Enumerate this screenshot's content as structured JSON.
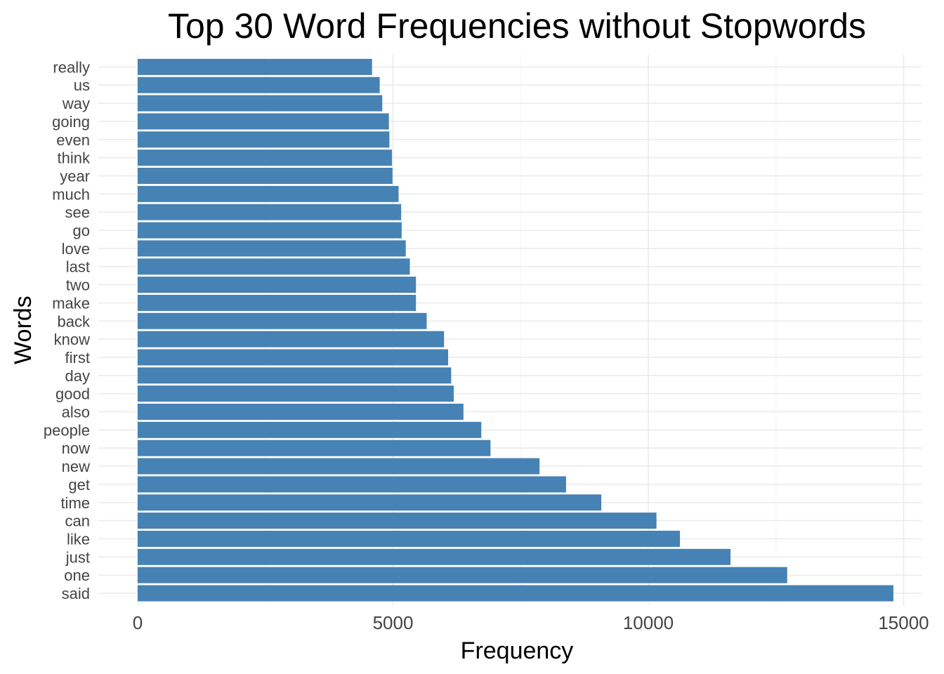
{
  "chart_data": {
    "type": "bar",
    "orientation": "horizontal",
    "title": "Top 30 Word Frequencies without Stopwords",
    "xlabel": "Frequency",
    "ylabel": "Words",
    "xlim": [
      0,
      15300
    ],
    "x_ticks": [
      0,
      5000,
      10000,
      15000
    ],
    "grid": true,
    "legend": "none",
    "bar_color": "#4682B4",
    "categories": [
      "said",
      "one",
      "just",
      "like",
      "can",
      "time",
      "get",
      "new",
      "now",
      "people",
      "also",
      "good",
      "day",
      "first",
      "know",
      "back",
      "make",
      "two",
      "last",
      "love",
      "go",
      "see",
      "much",
      "year",
      "think",
      "even",
      "going",
      "way",
      "us",
      "really"
    ],
    "values": [
      14800,
      12720,
      11610,
      10620,
      10160,
      9080,
      8390,
      7870,
      6910,
      6730,
      6380,
      6190,
      6140,
      6080,
      6000,
      5660,
      5450,
      5450,
      5330,
      5250,
      5170,
      5160,
      5110,
      4990,
      4980,
      4930,
      4920,
      4790,
      4740,
      4590
    ]
  }
}
